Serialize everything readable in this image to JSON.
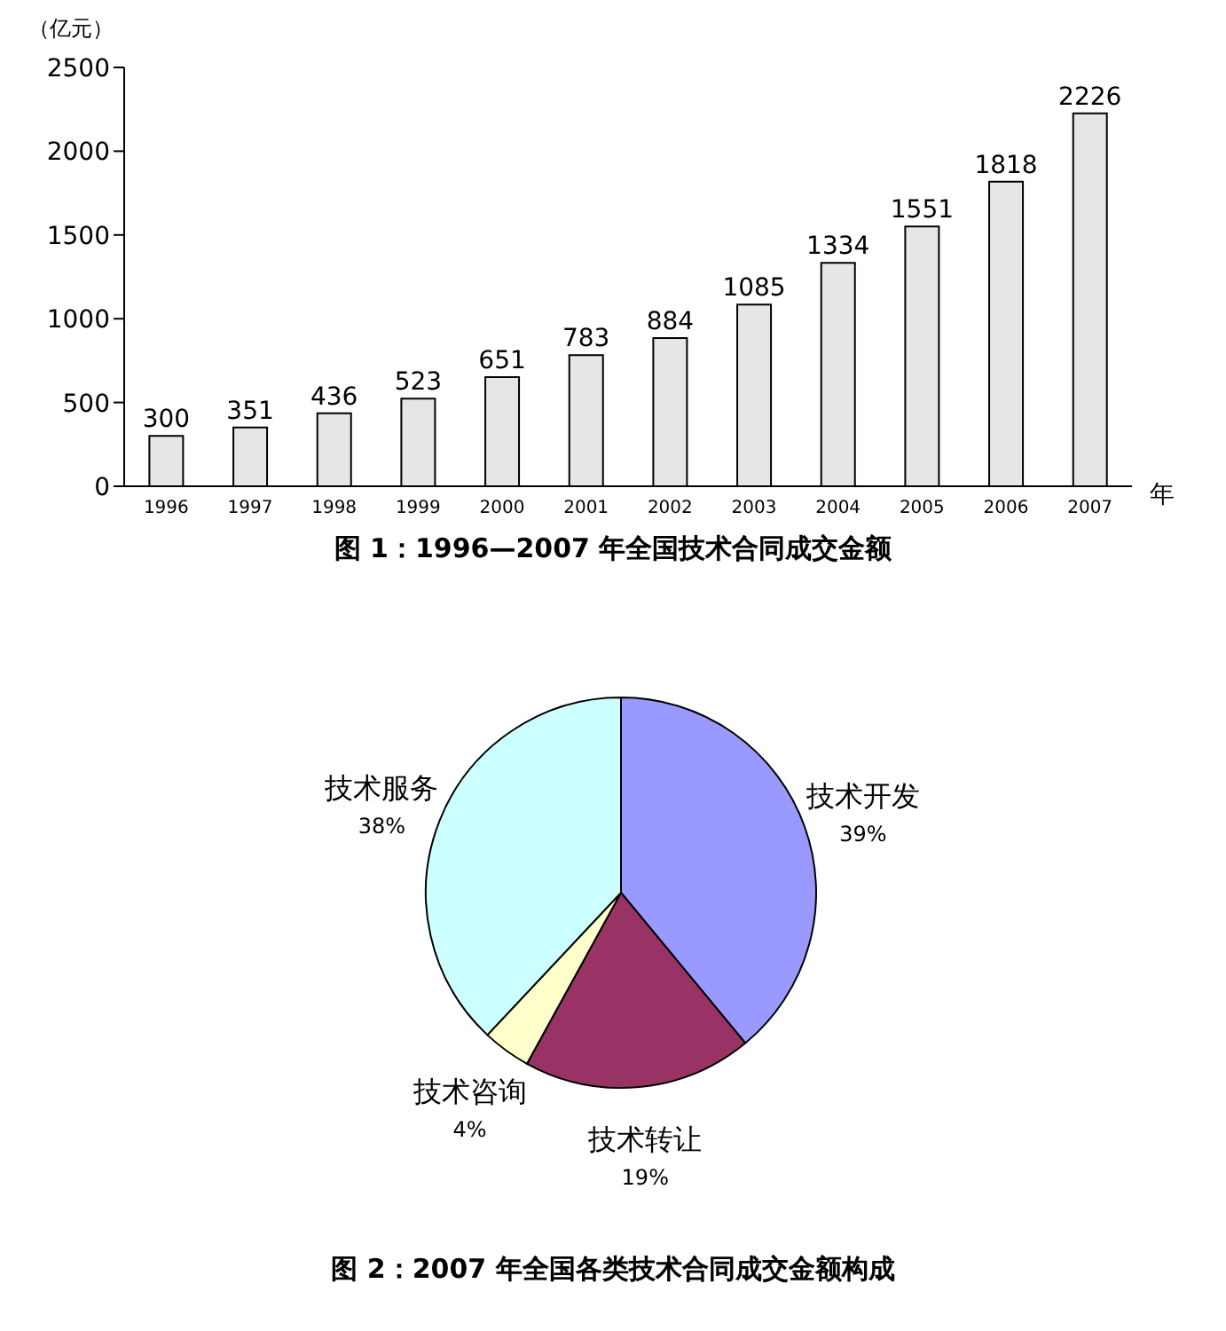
{
  "chart_data": [
    {
      "type": "bar",
      "title": "图 1：1996—2007 年全国技术合同成交金额",
      "ylabel": "（亿元）",
      "xlabel": "年",
      "categories": [
        "1996",
        "1997",
        "1998",
        "1999",
        "2000",
        "2001",
        "2002",
        "2003",
        "2004",
        "2005",
        "2006",
        "2007"
      ],
      "values": [
        300,
        351,
        436,
        523,
        651,
        783,
        884,
        1085,
        1334,
        1551,
        1818,
        2226
      ],
      "color": "#e6e6e6",
      "ylim": [
        0,
        2500
      ],
      "yticks": [
        0,
        500,
        1000,
        1500,
        2000,
        2500
      ],
      "data_labels": true
    },
    {
      "type": "pie",
      "title": "图 2：2007 年全国各类技术合同成交金额构成",
      "categories": [
        "技术开发",
        "技术转让",
        "技术咨询",
        "技术服务"
      ],
      "values": [
        39,
        19,
        4,
        38
      ],
      "value_labels": [
        "39%",
        "19%",
        "4%",
        "38%"
      ],
      "colors": [
        "#9999ff",
        "#993366",
        "#ffffcc",
        "#ccffff"
      ]
    }
  ]
}
